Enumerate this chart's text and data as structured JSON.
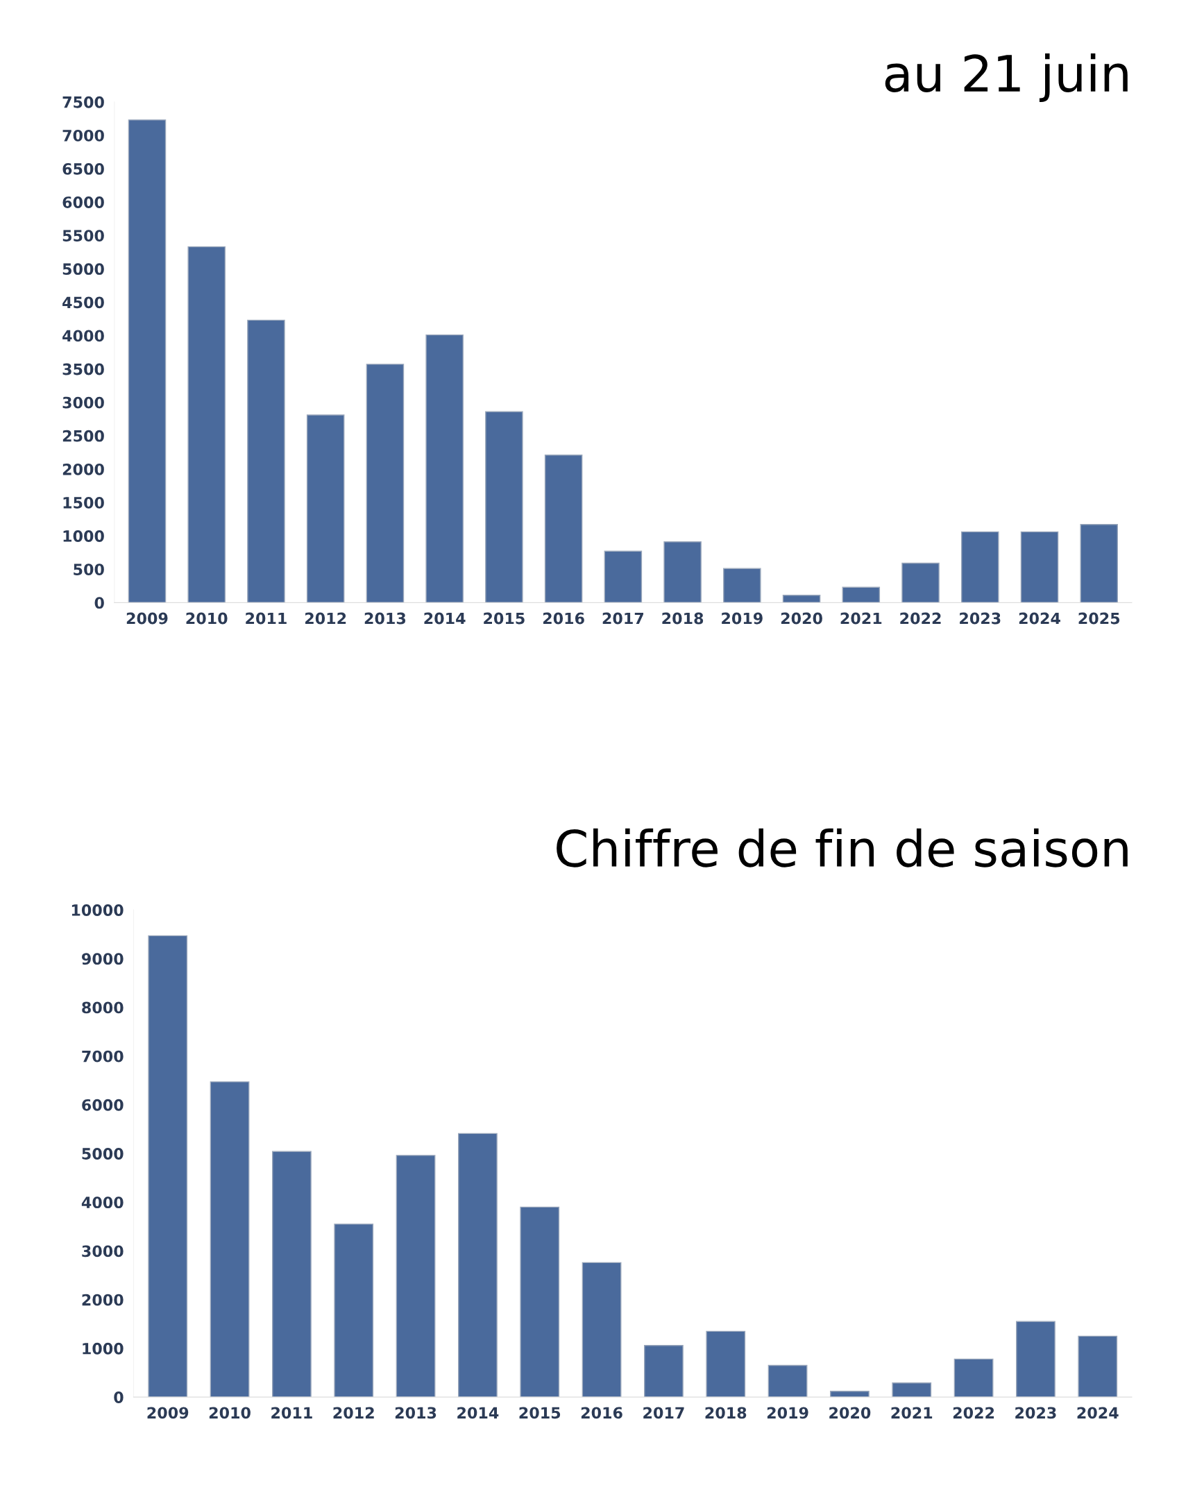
{
  "chart_data": [
    {
      "type": "bar",
      "title": "au 21 juin",
      "categories": [
        "2009",
        "2010",
        "2011",
        "2012",
        "2013",
        "2014",
        "2015",
        "2016",
        "2017",
        "2018",
        "2019",
        "2020",
        "2021",
        "2022",
        "2023",
        "2024",
        "2025"
      ],
      "values": [
        7230,
        5330,
        4230,
        2810,
        3570,
        4010,
        2860,
        2210,
        770,
        910,
        510,
        110,
        230,
        590,
        1060,
        1060,
        1170
      ],
      "color": "#4a6a9c",
      "ylim": [
        0,
        7500
      ],
      "yticks": [
        0,
        500,
        1000,
        1500,
        2000,
        2500,
        3000,
        3500,
        4000,
        4500,
        5000,
        5500,
        6000,
        6500,
        7000,
        7500
      ],
      "grid": false,
      "legend": false
    },
    {
      "type": "bar",
      "title": "Chiffre de fin de saison",
      "categories": [
        "2009",
        "2010",
        "2011",
        "2012",
        "2013",
        "2014",
        "2015",
        "2016",
        "2017",
        "2018",
        "2019",
        "2020",
        "2021",
        "2022",
        "2023",
        "2024"
      ],
      "values": [
        9470,
        6470,
        5040,
        3550,
        4960,
        5410,
        3900,
        2760,
        1060,
        1350,
        650,
        120,
        290,
        780,
        1550,
        1250
      ],
      "color": "#4a6a9c",
      "ylim": [
        0,
        10000
      ],
      "yticks": [
        0,
        1000,
        2000,
        3000,
        4000,
        5000,
        6000,
        7000,
        8000,
        9000,
        10000
      ],
      "grid": false,
      "legend": false
    }
  ]
}
